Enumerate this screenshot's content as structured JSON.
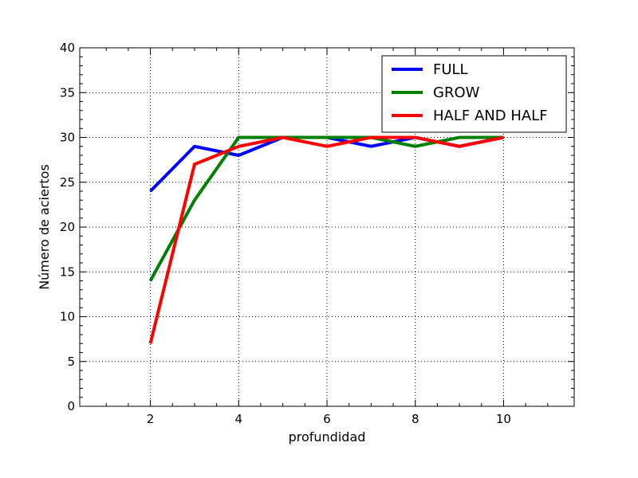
{
  "chart_data": {
    "type": "line",
    "title": "",
    "xlabel": "profundidad",
    "ylabel": "Número de aciertos",
    "xlim": [
      0.4,
      11.6
    ],
    "ylim": [
      0,
      40
    ],
    "x_ticks": [
      2,
      4,
      6,
      8,
      10
    ],
    "y_ticks": [
      0,
      5,
      10,
      15,
      20,
      25,
      30,
      35,
      40
    ],
    "grid": true,
    "legend_position": "top-right",
    "x": [
      2,
      3,
      4,
      5,
      6,
      7,
      8,
      9,
      10
    ],
    "series": [
      {
        "name": "FULL",
        "color": "#0000ff",
        "values": [
          24,
          29,
          28,
          30,
          30,
          29,
          30,
          29,
          30
        ]
      },
      {
        "name": "GROW",
        "color": "#008000",
        "values": [
          14,
          23,
          30,
          30,
          30,
          30,
          29,
          30,
          30
        ]
      },
      {
        "name": "HALF AND HALF",
        "color": "#ff0000",
        "values": [
          7,
          27,
          29,
          30,
          29,
          30,
          30,
          29,
          30
        ]
      }
    ]
  }
}
